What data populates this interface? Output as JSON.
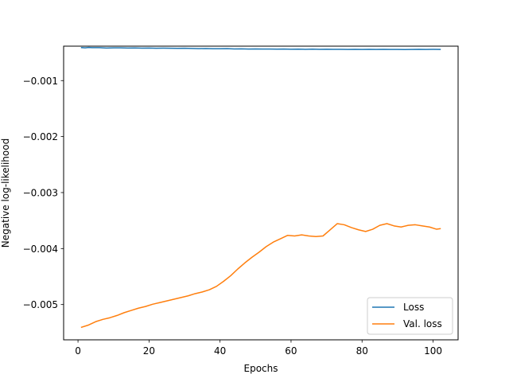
{
  "chart_data": {
    "type": "line",
    "title": "",
    "xlabel": "Epochs",
    "ylabel": "Negative log-likelihood",
    "xlim": [
      -4.05,
      107.05
    ],
    "ylim": [
      -0.00563,
      -0.000385
    ],
    "xticks": [
      0,
      20,
      40,
      60,
      80,
      100
    ],
    "yticks": [
      -0.005,
      -0.004,
      -0.003,
      -0.002,
      -0.001
    ],
    "xtick_labels": [
      "0",
      "20",
      "40",
      "60",
      "80",
      "100"
    ],
    "ytick_labels": [
      "−0.005",
      "−0.004",
      "−0.003",
      "−0.002",
      "−0.001"
    ],
    "grid": false,
    "legend_position": "lower-right",
    "series": [
      {
        "name": "Loss",
        "color": "#1f77b4",
        "x": [
          1,
          2,
          3,
          4,
          6,
          8,
          10,
          12,
          14,
          16,
          18,
          20,
          22,
          24,
          26,
          28,
          30,
          32,
          34,
          36,
          38,
          40,
          42,
          44,
          46,
          48,
          50,
          52,
          54,
          56,
          58,
          60,
          62,
          64,
          66,
          68,
          70,
          72,
          74,
          76,
          78,
          80,
          82,
          84,
          86,
          88,
          90,
          92,
          94,
          96,
          98,
          100,
          102
        ],
        "y": [
          -0.00041,
          -0.000415,
          -0.000408,
          -0.000412,
          -0.000412,
          -0.000418,
          -0.000415,
          -0.000416,
          -0.000418,
          -0.000417,
          -0.00042,
          -0.000418,
          -0.000422,
          -0.000421,
          -0.000422,
          -0.000425,
          -0.000423,
          -0.000426,
          -0.000429,
          -0.000428,
          -0.000431,
          -0.000432,
          -0.00043,
          -0.000434,
          -0.000433,
          -0.000436,
          -0.000434,
          -0.000437,
          -0.000436,
          -0.000438,
          -0.000437,
          -0.00044,
          -0.000438,
          -0.000441,
          -0.000439,
          -0.000441,
          -0.00044,
          -0.000442,
          -0.000441,
          -0.000443,
          -0.000441,
          -0.000443,
          -0.000442,
          -0.000444,
          -0.000442,
          -0.000444,
          -0.000443,
          -0.000445,
          -0.000443,
          -0.000441,
          -0.000443,
          -0.000442,
          -0.000443
        ]
      },
      {
        "name": "Val. loss",
        "color": "#ff7f0e",
        "x": [
          1,
          3,
          5,
          7,
          9,
          11,
          13,
          15,
          17,
          19,
          21,
          23,
          25,
          27,
          29,
          31,
          33,
          35,
          37,
          39,
          41,
          43,
          45,
          47,
          49,
          51,
          53,
          55,
          57,
          59,
          61,
          63,
          65,
          67,
          69,
          71,
          73,
          75,
          77,
          79,
          81,
          83,
          85,
          87,
          89,
          91,
          93,
          95,
          97,
          99,
          101,
          102
        ],
        "y": [
          -0.005405,
          -0.005365,
          -0.005305,
          -0.005265,
          -0.005235,
          -0.005195,
          -0.005145,
          -0.005105,
          -0.005065,
          -0.005035,
          -0.004995,
          -0.004965,
          -0.004935,
          -0.004905,
          -0.004875,
          -0.004845,
          -0.004805,
          -0.004775,
          -0.004735,
          -0.004675,
          -0.004585,
          -0.004485,
          -0.004365,
          -0.004255,
          -0.004155,
          -0.004065,
          -0.003965,
          -0.003885,
          -0.003825,
          -0.003765,
          -0.003775,
          -0.003755,
          -0.003775,
          -0.003785,
          -0.003775,
          -0.003665,
          -0.003555,
          -0.003575,
          -0.003625,
          -0.003665,
          -0.003695,
          -0.003655,
          -0.003585,
          -0.003555,
          -0.003595,
          -0.003615,
          -0.003585,
          -0.003575,
          -0.003595,
          -0.003615,
          -0.003655,
          -0.003645
        ]
      }
    ]
  }
}
